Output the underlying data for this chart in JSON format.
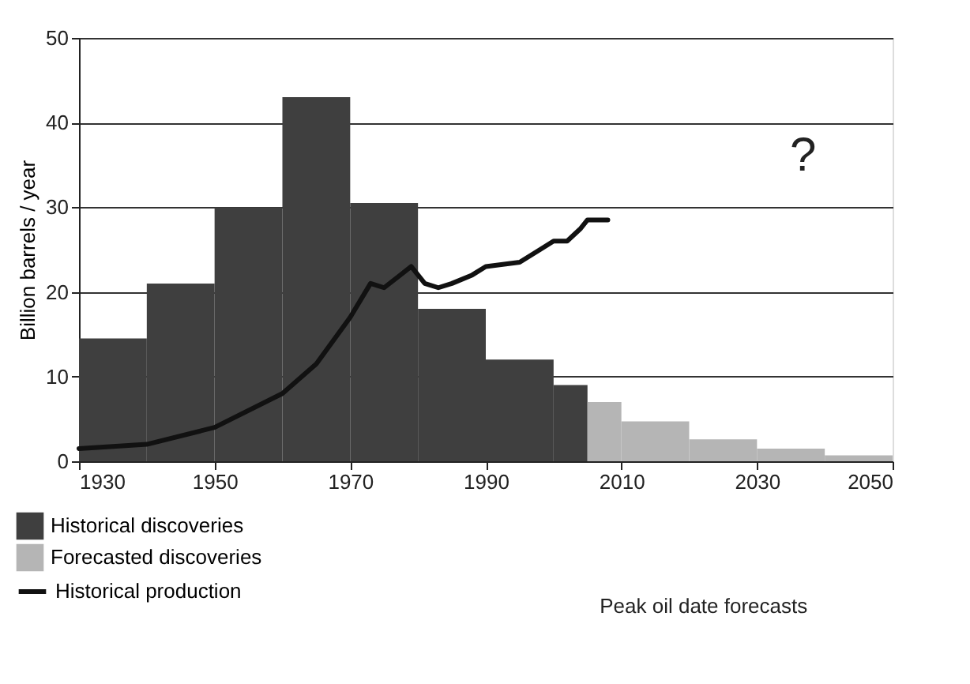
{
  "chart_data": {
    "type": "histogram",
    "ylabel": "Billion barrels / year",
    "bins": [
      1930,
      1940,
      1950,
      1960,
      1970,
      1980,
      1990,
      2000,
      2005,
      2010,
      2020,
      2030,
      2040,
      2050
    ],
    "series": [
      {
        "name": "Historical discoveries",
        "color": "#3f3f3f",
        "values": [
          14.5,
          21,
          30,
          43,
          30.5,
          18,
          12,
          9,
          null,
          null,
          null,
          null,
          null
        ]
      },
      {
        "name": "Forecasted discoveries",
        "color": "#b5b5b5",
        "values": [
          null,
          null,
          null,
          null,
          null,
          null,
          null,
          null,
          7,
          4.7,
          2.6,
          1.5,
          0.7
        ]
      },
      {
        "name": "Historical production",
        "type": "line",
        "color": "#111111",
        "x": [
          1930,
          1940,
          1950,
          1960,
          1965,
          1970,
          1973,
          1975,
          1979,
          1981,
          1983,
          1985,
          1988,
          1990,
          1995,
          1998,
          2000,
          2002,
          2004,
          2005,
          2008
        ],
        "values": [
          1.5,
          2,
          4,
          8,
          11.5,
          17,
          21,
          20.5,
          23,
          21,
          20.5,
          21,
          22,
          23,
          23.5,
          25,
          26,
          26,
          27.5,
          28.5,
          28.5
        ]
      }
    ],
    "xlim": [
      1930,
      2050
    ],
    "xticks": [
      1930,
      1950,
      1970,
      1990,
      2010,
      2030,
      2050
    ],
    "ylim": [
      0,
      50
    ],
    "yticks": [
      0,
      10,
      20,
      30,
      40,
      50
    ],
    "grid": "y",
    "legend": "bottom left",
    "annotations": [
      "?",
      "Peak oil date forecasts"
    ]
  }
}
